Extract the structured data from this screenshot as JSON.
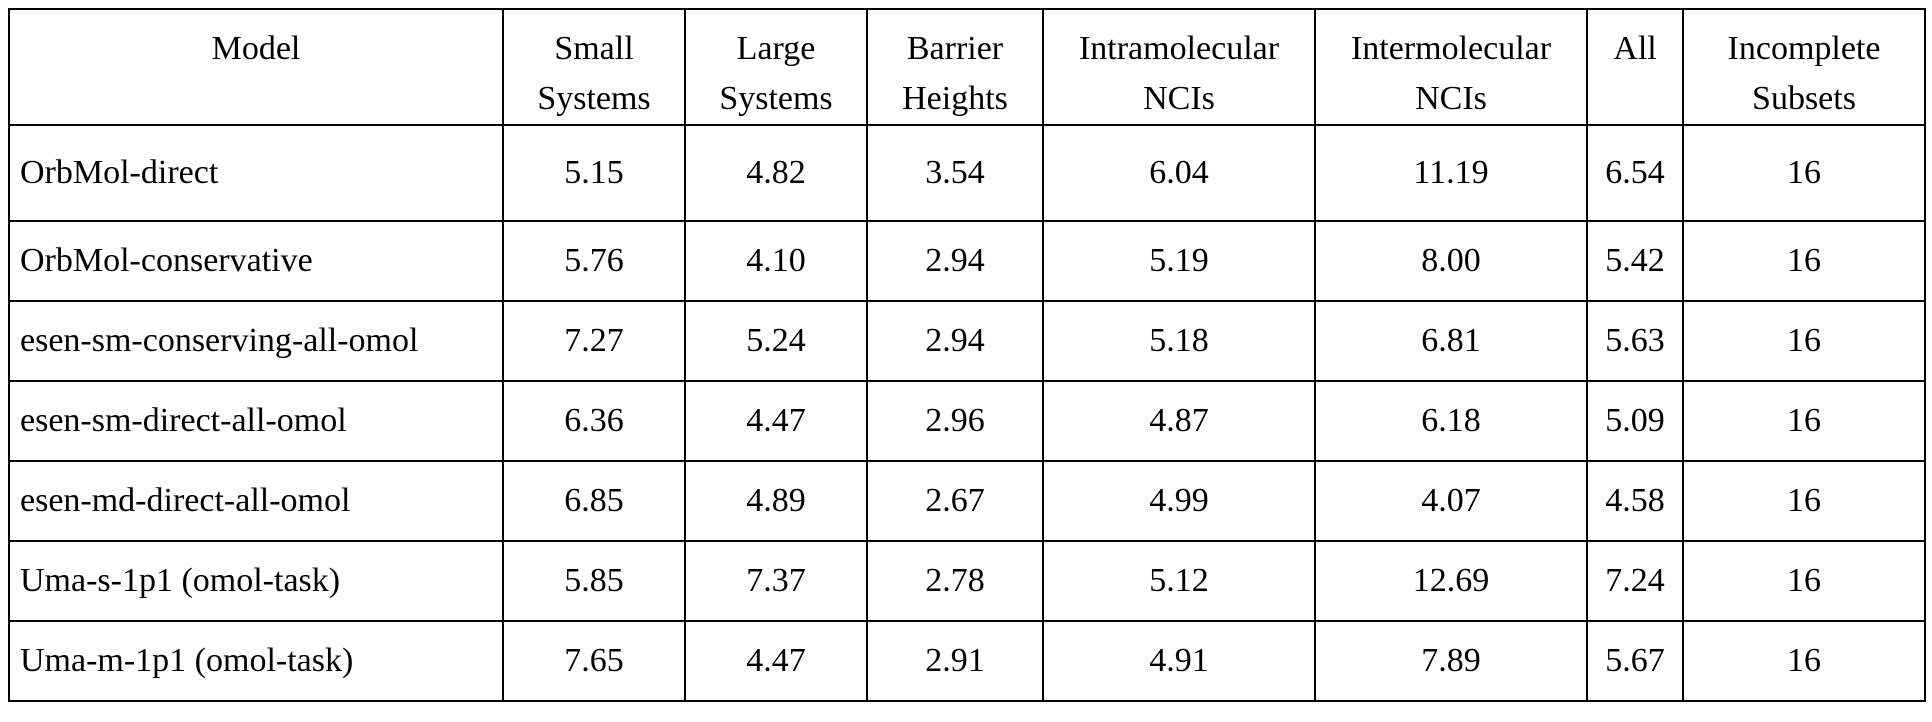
{
  "table": {
    "headers": [
      [
        "Model"
      ],
      [
        "Small",
        "Systems"
      ],
      [
        "Large",
        "Systems"
      ],
      [
        "Barrier",
        "Heights"
      ],
      [
        "Intramolecular",
        "NCIs"
      ],
      [
        "Intermolecular",
        "NCIs"
      ],
      [
        "All"
      ],
      [
        "Incomplete",
        "Subsets"
      ]
    ],
    "rows": [
      [
        "OrbMol-direct",
        "5.15",
        "4.82",
        "3.54",
        "6.04",
        "11.19",
        "6.54",
        "16"
      ],
      [
        "OrbMol-conservative",
        "5.76",
        "4.10",
        "2.94",
        "5.19",
        "8.00",
        "5.42",
        "16"
      ],
      [
        "esen-sm-conserving-all-omol",
        "7.27",
        "5.24",
        "2.94",
        "5.18",
        "6.81",
        "5.63",
        "16"
      ],
      [
        "esen-sm-direct-all-omol",
        "6.36",
        "4.47",
        "2.96",
        "4.87",
        "6.18",
        "5.09",
        "16"
      ],
      [
        "esen-md-direct-all-omol",
        "6.85",
        "4.89",
        "2.67",
        "4.99",
        "4.07",
        "4.58",
        "16"
      ],
      [
        "Uma-s-1p1 (omol-task)",
        "5.85",
        "7.37",
        "2.78",
        "5.12",
        "12.69",
        "7.24",
        "16"
      ],
      [
        "Uma-m-1p1 (omol-task)",
        "7.65",
        "4.47",
        "2.91",
        "4.91",
        "7.89",
        "5.67",
        "16"
      ]
    ]
  }
}
